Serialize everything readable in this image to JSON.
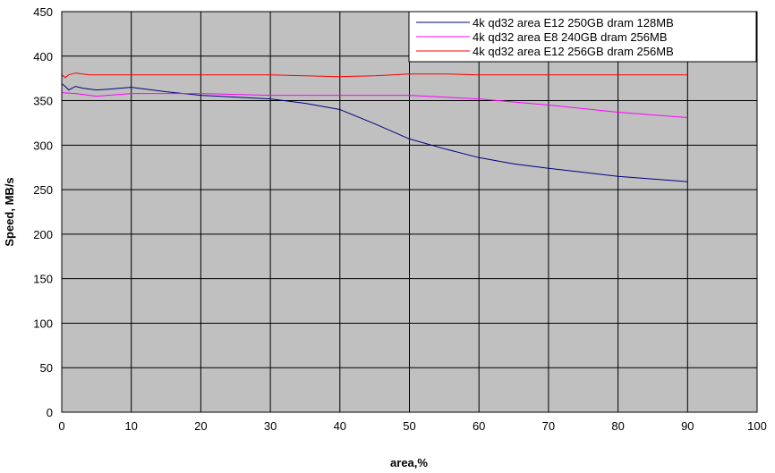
{
  "chart_data": {
    "type": "line",
    "xlabel": "area,%",
    "ylabel": "Speed, MB/s",
    "xlim": [
      0,
      100
    ],
    "ylim": [
      0,
      450
    ],
    "x_ticks": [
      0,
      10,
      20,
      30,
      40,
      50,
      60,
      70,
      80,
      90,
      100
    ],
    "y_ticks": [
      0,
      50,
      100,
      150,
      200,
      250,
      300,
      350,
      400,
      450
    ],
    "grid": true,
    "legend_position": "top-right",
    "plot_background": "#c0c0c0",
    "series": [
      {
        "name": "4k qd32 area E12 250GB dram 128MB",
        "color": "#000080",
        "points": [
          [
            0,
            369
          ],
          [
            0.5,
            366
          ],
          [
            1,
            362
          ],
          [
            1.5,
            364
          ],
          [
            2,
            366
          ],
          [
            3,
            364
          ],
          [
            5,
            362
          ],
          [
            7,
            363
          ],
          [
            10,
            365
          ],
          [
            15,
            360
          ],
          [
            20,
            356
          ],
          [
            25,
            354
          ],
          [
            30,
            352
          ],
          [
            35,
            347
          ],
          [
            40,
            340
          ],
          [
            45,
            324
          ],
          [
            50,
            307
          ],
          [
            55,
            296
          ],
          [
            60,
            286
          ],
          [
            65,
            279
          ],
          [
            70,
            274
          ],
          [
            80,
            265
          ],
          [
            90,
            259
          ]
        ]
      },
      {
        "name": "4k qd32 area E8 240GB dram 256MB",
        "color": "#ff00ff",
        "points": [
          [
            0,
            359
          ],
          [
            2,
            358
          ],
          [
            5,
            355
          ],
          [
            10,
            358
          ],
          [
            20,
            358
          ],
          [
            30,
            356
          ],
          [
            40,
            356
          ],
          [
            50,
            356
          ],
          [
            60,
            352
          ],
          [
            70,
            345
          ],
          [
            80,
            337
          ],
          [
            90,
            331
          ]
        ]
      },
      {
        "name": "4k qd32 area E12 256GB dram 256MB",
        "color": "#ff0000",
        "points": [
          [
            0,
            379
          ],
          [
            0.5,
            376
          ],
          [
            1,
            379
          ],
          [
            2,
            381
          ],
          [
            3,
            380
          ],
          [
            4,
            379
          ],
          [
            10,
            379
          ],
          [
            20,
            379
          ],
          [
            30,
            379
          ],
          [
            35,
            378
          ],
          [
            40,
            377
          ],
          [
            45,
            378
          ],
          [
            50,
            380
          ],
          [
            55,
            380
          ],
          [
            60,
            379
          ],
          [
            70,
            379
          ],
          [
            80,
            379
          ],
          [
            90,
            379
          ]
        ]
      }
    ]
  }
}
